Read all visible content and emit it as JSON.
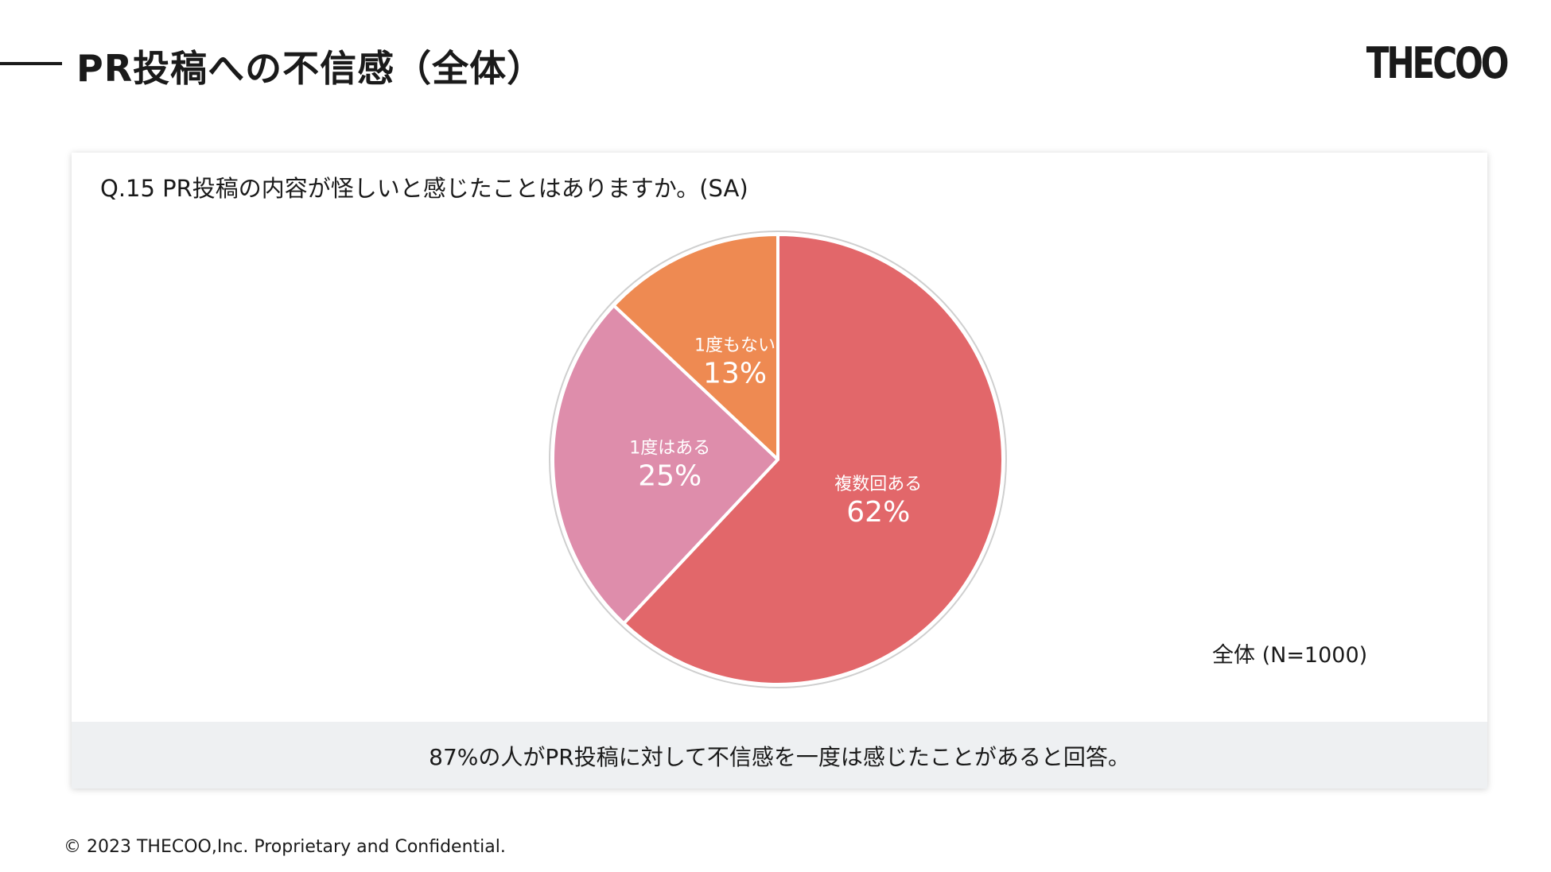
{
  "header": {
    "title": "PR投稿への不信感（全体）",
    "logo_text": "THECOO"
  },
  "card": {
    "question": "Q.15 PR投稿の内容が怪しいと感じたことはありますか。(SA)",
    "n_label": "全体 (N=1000)",
    "summary": "87%の人がPR投稿に対して不信感を一度は感じたことがあると回答。"
  },
  "chart_data": {
    "type": "pie",
    "title": "",
    "slices": [
      {
        "label": "複数回ある",
        "value": 62,
        "value_label": "62%",
        "color": "#e2676a"
      },
      {
        "label": "1度はある",
        "value": 25,
        "value_label": "25%",
        "color": "#de8dab"
      },
      {
        "label": "1度もない",
        "value": 13,
        "value_label": "13%",
        "color": "#ee8a52"
      }
    ],
    "start": "12 o'clock",
    "direction": "clockwise",
    "outline_color": "#cfcfcf"
  },
  "footer": {
    "copyright": "© 2023 THECOO,Inc. Proprietary and Confidential."
  }
}
